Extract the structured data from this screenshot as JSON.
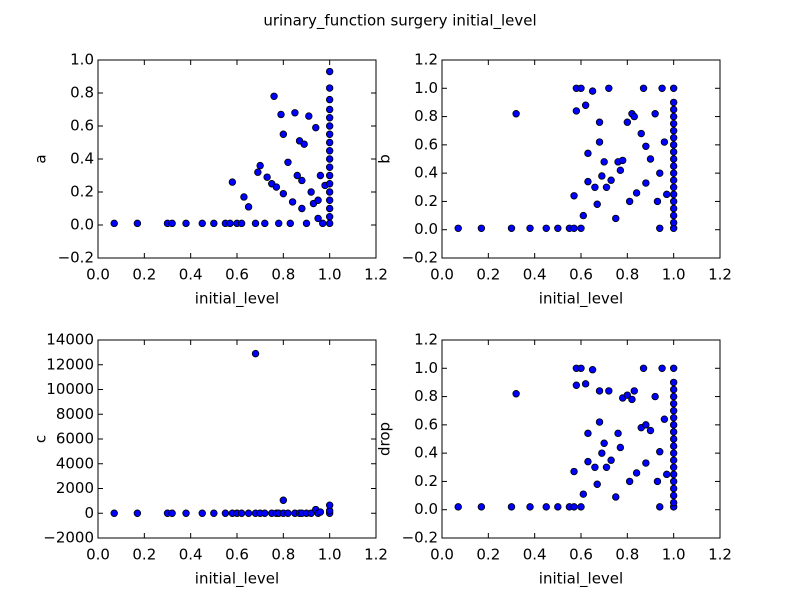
{
  "title": "urinary_function surgery initial_level",
  "chart_data": [
    {
      "type": "scatter",
      "xlabel": "initial_level",
      "ylabel": "a",
      "color": "#0000ff",
      "xlim": [
        0,
        1.2
      ],
      "ylim": [
        -0.2,
        1.0
      ],
      "xticks": [
        {
          "value": 0,
          "label": "0.0"
        },
        0.2,
        0.4,
        0.6,
        0.8,
        {
          "value": 1,
          "label": "1.0"
        },
        1.2
      ],
      "yticks": [
        {
          "value": -0.2,
          "label": "−0.2"
        },
        {
          "value": 0,
          "label": "0.0"
        },
        0.2,
        0.4,
        0.6,
        0.8,
        {
          "value": 1,
          "label": "1.0"
        }
      ],
      "x": [
        0.07,
        0.17,
        0.3,
        0.32,
        0.38,
        0.45,
        0.5,
        0.55,
        0.57,
        0.58,
        0.6,
        0.62,
        0.63,
        0.65,
        0.68,
        0.69,
        0.7,
        0.72,
        0.73,
        0.75,
        0.76,
        0.77,
        0.78,
        0.79,
        0.8,
        0.8,
        0.82,
        0.83,
        0.84,
        0.85,
        0.86,
        0.87,
        0.88,
        0.88,
        0.89,
        0.9,
        0.91,
        0.92,
        0.93,
        0.94,
        0.95,
        0.95,
        0.96,
        0.97,
        0.98,
        1.0,
        1.0,
        1.0,
        1.0,
        1.0,
        1.0,
        1.0,
        1.0,
        1.0,
        1.0,
        1.0,
        1.0,
        1.0,
        1.0,
        1.0,
        1.0,
        1.0,
        1.0
      ],
      "y": [
        0.01,
        0.01,
        0.01,
        0.01,
        0.01,
        0.01,
        0.01,
        0.01,
        0.01,
        0.26,
        0.01,
        0.01,
        0.17,
        0.11,
        0.01,
        0.32,
        0.36,
        0.01,
        0.29,
        0.25,
        0.78,
        0.23,
        0.01,
        0.67,
        0.55,
        0.19,
        0.38,
        0.01,
        0.14,
        0.68,
        0.3,
        0.51,
        0.27,
        0.1,
        0.49,
        0.01,
        0.66,
        0.2,
        0.13,
        0.59,
        0.04,
        0.15,
        0.3,
        0.01,
        0.24,
        0.01,
        0.05,
        0.1,
        0.15,
        0.2,
        0.25,
        0.3,
        0.35,
        0.4,
        0.45,
        0.5,
        0.55,
        0.6,
        0.65,
        0.7,
        0.76,
        0.83,
        0.93
      ]
    },
    {
      "type": "scatter",
      "xlabel": "initial_level",
      "ylabel": "b",
      "color": "#0000ff",
      "xlim": [
        0,
        1.2
      ],
      "ylim": [
        -0.2,
        1.2
      ],
      "xticks": [
        {
          "value": 0,
          "label": "0.0"
        },
        0.2,
        0.4,
        0.6,
        0.8,
        {
          "value": 1,
          "label": "1.0"
        },
        1.2
      ],
      "yticks": [
        {
          "value": -0.2,
          "label": "−0.2"
        },
        {
          "value": 0,
          "label": "0.0"
        },
        0.2,
        0.4,
        0.6,
        0.8,
        {
          "value": 1,
          "label": "1.0"
        },
        1.2
      ],
      "x": [
        0.07,
        0.17,
        0.3,
        0.32,
        0.38,
        0.45,
        0.5,
        0.55,
        0.57,
        0.57,
        0.58,
        0.58,
        0.6,
        0.6,
        0.61,
        0.62,
        0.63,
        0.63,
        0.65,
        0.66,
        0.67,
        0.68,
        0.68,
        0.69,
        0.7,
        0.71,
        0.72,
        0.73,
        0.75,
        0.76,
        0.77,
        0.78,
        0.8,
        0.81,
        0.82,
        0.83,
        0.84,
        0.86,
        0.87,
        0.88,
        0.88,
        0.9,
        0.92,
        0.93,
        0.94,
        0.94,
        0.95,
        0.96,
        0.97,
        1.0,
        1.0,
        1.0,
        1.0,
        1.0,
        1.0,
        1.0,
        1.0,
        1.0,
        1.0,
        1.0,
        1.0,
        1.0,
        1.0,
        1.0,
        1.0,
        1.0,
        1.0,
        1.0,
        1.0
      ],
      "y": [
        0.01,
        0.01,
        0.01,
        0.82,
        0.01,
        0.01,
        0.01,
        0.01,
        0.01,
        0.24,
        0.84,
        1.0,
        1.0,
        0.01,
        0.1,
        0.88,
        0.54,
        0.34,
        0.98,
        0.3,
        0.18,
        0.62,
        0.76,
        0.38,
        0.48,
        0.3,
        1.0,
        0.35,
        0.08,
        0.48,
        0.42,
        0.49,
        0.76,
        0.2,
        0.82,
        0.8,
        0.26,
        0.68,
        1.0,
        0.59,
        0.33,
        0.5,
        0.82,
        0.2,
        0.01,
        0.4,
        1.0,
        0.62,
        0.25,
        0.01,
        0.05,
        0.1,
        0.15,
        0.2,
        0.25,
        0.3,
        0.35,
        0.4,
        0.45,
        0.5,
        0.55,
        0.6,
        0.65,
        0.7,
        0.75,
        0.8,
        0.85,
        0.9,
        1.0
      ]
    },
    {
      "type": "scatter",
      "xlabel": "initial_level",
      "ylabel": "c",
      "color": "#0000ff",
      "xlim": [
        0,
        1.2
      ],
      "ylim": [
        -2000,
        14000
      ],
      "xticks": [
        {
          "value": 0,
          "label": "0.0"
        },
        0.2,
        0.4,
        0.6,
        0.8,
        {
          "value": 1,
          "label": "1.0"
        },
        1.2
      ],
      "yticks": [
        {
          "value": -2000,
          "label": "−2000"
        },
        0,
        2000,
        4000,
        6000,
        8000,
        10000,
        12000,
        14000
      ],
      "x": [
        0.07,
        0.17,
        0.3,
        0.32,
        0.38,
        0.45,
        0.5,
        0.55,
        0.58,
        0.6,
        0.62,
        0.65,
        0.68,
        0.68,
        0.7,
        0.72,
        0.75,
        0.77,
        0.78,
        0.8,
        0.8,
        0.82,
        0.85,
        0.87,
        0.88,
        0.9,
        0.92,
        0.94,
        0.95,
        0.96,
        1.0,
        1.0,
        1.0
      ],
      "y": [
        0,
        0,
        0,
        0,
        0,
        0,
        0,
        0,
        0,
        0,
        0,
        0,
        0,
        12900,
        0,
        0,
        0,
        0,
        0,
        0,
        1050,
        0,
        0,
        0,
        0,
        0,
        0,
        300,
        0,
        100,
        0,
        200,
        650
      ]
    },
    {
      "type": "scatter",
      "xlabel": "initial_level",
      "ylabel": "drop",
      "color": "#0000ff",
      "xlim": [
        0,
        1.2
      ],
      "ylim": [
        -0.2,
        1.2
      ],
      "xticks": [
        {
          "value": 0,
          "label": "0.0"
        },
        0.2,
        0.4,
        0.6,
        0.8,
        {
          "value": 1,
          "label": "1.0"
        },
        1.2
      ],
      "yticks": [
        {
          "value": -0.2,
          "label": "−0.2"
        },
        {
          "value": 0,
          "label": "0.0"
        },
        0.2,
        0.4,
        0.6,
        0.8,
        {
          "value": 1,
          "label": "1.0"
        },
        1.2
      ],
      "x": [
        0.07,
        0.17,
        0.3,
        0.32,
        0.38,
        0.45,
        0.5,
        0.55,
        0.57,
        0.57,
        0.58,
        0.58,
        0.6,
        0.6,
        0.61,
        0.62,
        0.63,
        0.63,
        0.65,
        0.66,
        0.67,
        0.68,
        0.68,
        0.69,
        0.7,
        0.71,
        0.72,
        0.73,
        0.75,
        0.76,
        0.77,
        0.78,
        0.8,
        0.81,
        0.82,
        0.83,
        0.84,
        0.86,
        0.87,
        0.88,
        0.88,
        0.9,
        0.92,
        0.93,
        0.94,
        0.94,
        0.95,
        0.96,
        0.97,
        1.0,
        1.0,
        1.0,
        1.0,
        1.0,
        1.0,
        1.0,
        1.0,
        1.0,
        1.0,
        1.0,
        1.0,
        1.0,
        1.0,
        1.0,
        1.0,
        1.0,
        1.0,
        1.0,
        1.0
      ],
      "y": [
        0.02,
        0.02,
        0.02,
        0.82,
        0.02,
        0.02,
        0.02,
        0.02,
        0.02,
        0.27,
        0.88,
        1.0,
        1.0,
        0.02,
        0.11,
        0.89,
        0.54,
        0.34,
        0.99,
        0.3,
        0.18,
        0.62,
        0.84,
        0.4,
        0.47,
        0.3,
        0.84,
        0.35,
        0.09,
        0.54,
        0.44,
        0.79,
        0.81,
        0.2,
        0.78,
        0.84,
        0.26,
        0.58,
        1.0,
        0.6,
        0.33,
        0.56,
        0.8,
        0.2,
        0.02,
        0.41,
        1.0,
        0.64,
        0.25,
        0.02,
        0.05,
        0.1,
        0.15,
        0.2,
        0.25,
        0.3,
        0.35,
        0.4,
        0.45,
        0.5,
        0.55,
        0.6,
        0.65,
        0.7,
        0.75,
        0.8,
        0.85,
        0.9,
        1.0
      ]
    }
  ]
}
